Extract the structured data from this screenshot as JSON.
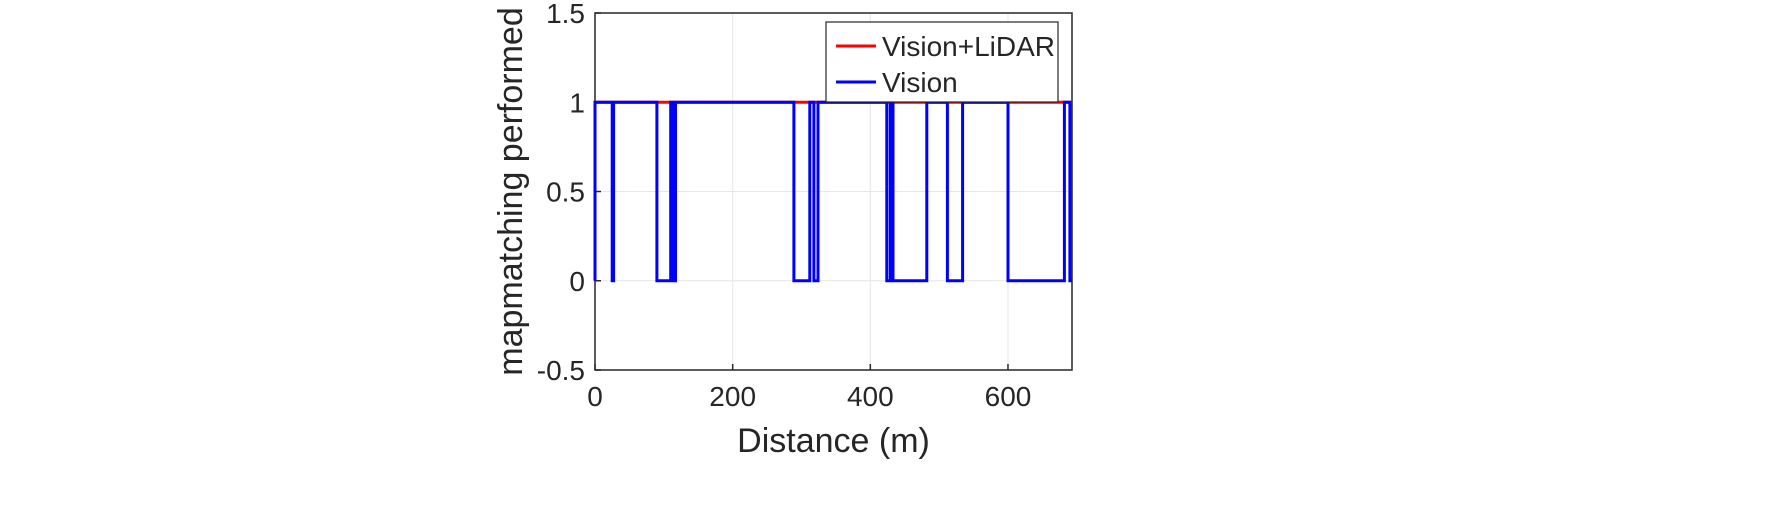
{
  "chart_data": {
    "type": "line",
    "title": "",
    "xlabel": "Distance (m)",
    "ylabel": "mapmatching performed",
    "xlim": [
      0,
      693
    ],
    "ylim": [
      -0.5,
      1.5
    ],
    "xticks": [
      0,
      200,
      400,
      600
    ],
    "xtick_labels": [
      "0",
      "200",
      "400",
      "600"
    ],
    "yticks": [
      -0.5,
      0,
      0.5,
      1,
      1.5
    ],
    "ytick_labels": [
      "-0.5",
      "0",
      "0.5",
      "1",
      "1.5"
    ],
    "grid": true,
    "legend_location": "top-right",
    "series": [
      {
        "name": "Vision+LiDAR",
        "color": "#ff0000",
        "x": [
          0,
          693
        ],
        "y": [
          1,
          1
        ]
      },
      {
        "name": "Vision",
        "color": "#0000ff",
        "x": [
          0,
          0,
          3,
          3,
          25,
          25,
          27,
          27,
          90,
          90,
          110,
          110,
          114,
          114,
          117,
          117,
          130,
          130,
          289,
          289,
          312,
          312,
          318,
          318,
          324,
          324,
          424,
          424,
          429,
          429,
          433,
          433,
          482,
          482,
          512,
          512,
          534,
          534,
          537,
          537,
          600,
          600,
          682,
          682,
          690,
          690,
          693
        ],
        "y": [
          0,
          1,
          1,
          1,
          1,
          0,
          0,
          1,
          1,
          0,
          0,
          1,
          1,
          0,
          0,
          1,
          1,
          1,
          1,
          0,
          0,
          1,
          1,
          0,
          0,
          1,
          1,
          0,
          0,
          1,
          1,
          0,
          0,
          1,
          1,
          0,
          0,
          1,
          1,
          1,
          1,
          0,
          0,
          1,
          1,
          0,
          0
        ]
      }
    ]
  }
}
